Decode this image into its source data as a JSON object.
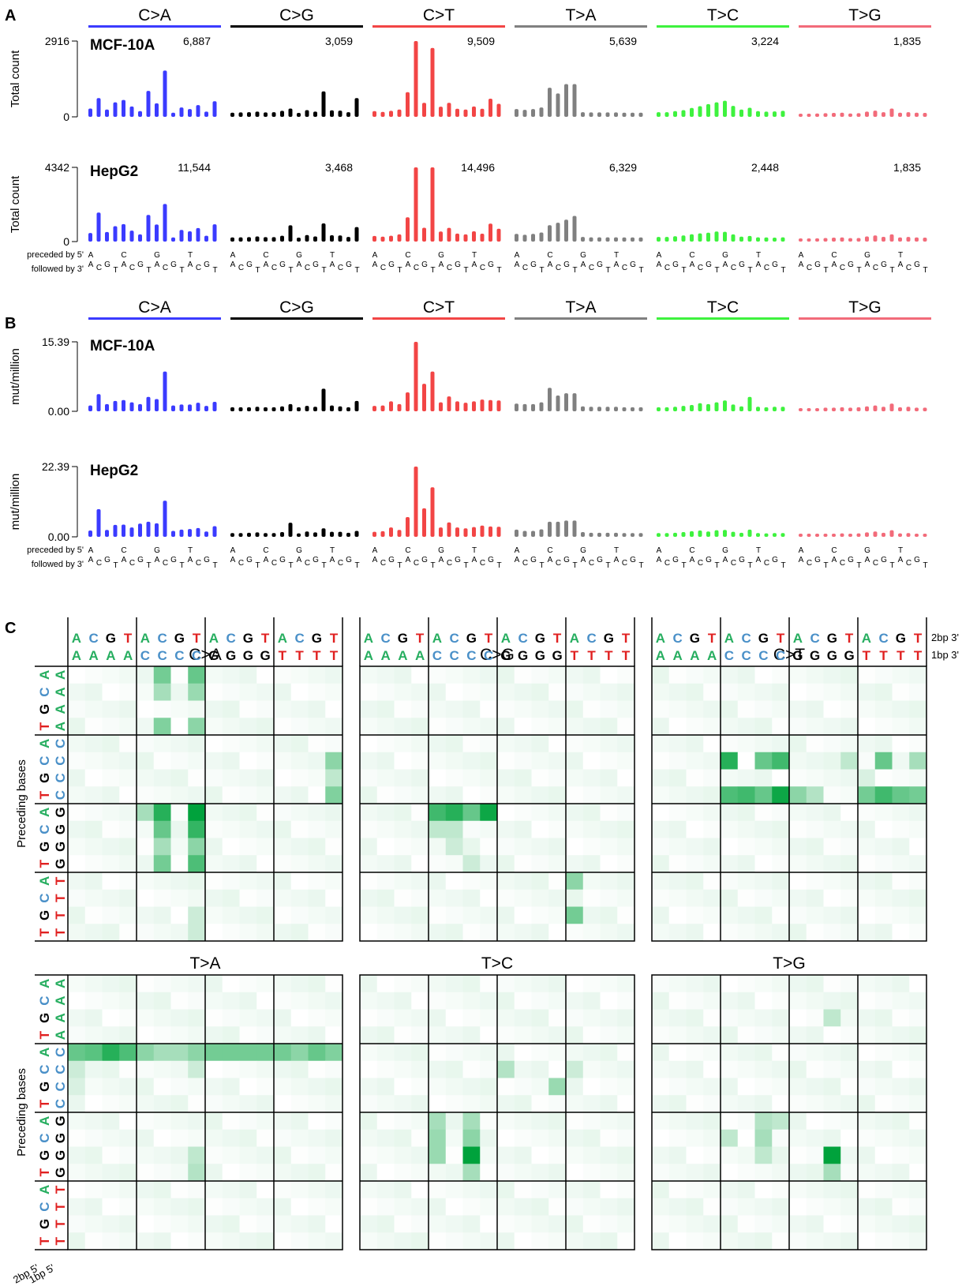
{
  "panels": [
    {
      "letter": "A",
      "kind": "total_count"
    },
    {
      "letter": "B",
      "kind": "mut_per_million"
    },
    {
      "letter": "C",
      "kind": "heatmap"
    }
  ],
  "substitutions": [
    {
      "label": "C>A",
      "color": "#3b3bff"
    },
    {
      "label": "C>G",
      "color": "#000000"
    },
    {
      "label": "C>T",
      "color": "#f24545"
    },
    {
      "label": "T>A",
      "color": "#808080"
    },
    {
      "label": "T>C",
      "color": "#3ef23e"
    },
    {
      "label": "T>G",
      "color": "#f26b7a"
    }
  ],
  "context": {
    "preceded_label": "preceded by 5'",
    "followed_label": "followed by 3'",
    "preceded_bases": [
      "A",
      "C",
      "G",
      "T"
    ],
    "followed_bases": [
      "A",
      "C",
      "G",
      "T"
    ]
  },
  "base_colors": {
    "A": "#27ae60",
    "C": "#4a90c8",
    "G": "#000000",
    "T": "#e02020"
  },
  "chart_data": [
    {
      "type": "bar",
      "panel": "A",
      "sample": "MCF-10A",
      "ylabel": "Total count",
      "ylim": [
        0,
        2916
      ],
      "yticks": [
        "2916",
        "0"
      ],
      "group_totals": [
        "6,887",
        "3,059",
        "9,509",
        "5,639",
        "3,224",
        "1,835"
      ],
      "series": [
        {
          "name": "C>A",
          "values": [
            320,
            720,
            280,
            560,
            650,
            400,
            220,
            1000,
            520,
            1780,
            160,
            360,
            300,
            450,
            200,
            600
          ]
        },
        {
          "name": "C>G",
          "values": [
            160,
            170,
            180,
            200,
            170,
            180,
            230,
            320,
            150,
            260,
            200,
            980,
            250,
            240,
            180,
            720
          ]
        },
        {
          "name": "C>T",
          "values": [
            220,
            190,
            230,
            280,
            950,
            2916,
            540,
            2650,
            390,
            540,
            310,
            280,
            400,
            310,
            700,
            500
          ]
        },
        {
          "name": "T>A",
          "values": [
            300,
            270,
            300,
            360,
            1120,
            900,
            1260,
            1260,
            180,
            170,
            170,
            170,
            170,
            160,
            160,
            160
          ]
        },
        {
          "name": "T>C",
          "values": [
            180,
            180,
            220,
            260,
            340,
            410,
            490,
            560,
            620,
            420,
            280,
            350,
            220,
            200,
            210,
            230
          ]
        },
        {
          "name": "T>G",
          "values": [
            110,
            120,
            130,
            140,
            150,
            160,
            130,
            140,
            200,
            240,
            180,
            320,
            160,
            180,
            160,
            150
          ]
        }
      ]
    },
    {
      "type": "bar",
      "panel": "A",
      "sample": "HepG2",
      "ylabel": "Total count",
      "ylim": [
        0,
        4342
      ],
      "yticks": [
        "4342",
        "0"
      ],
      "group_totals": [
        "11,544",
        "3,468",
        "14,496",
        "6,329",
        "2,448",
        "1,835"
      ],
      "series": [
        {
          "name": "C>A",
          "values": [
            500,
            1700,
            560,
            900,
            1020,
            640,
            420,
            1560,
            1000,
            2200,
            240,
            680,
            600,
            790,
            340,
            1010
          ]
        },
        {
          "name": "C>G",
          "values": [
            240,
            250,
            260,
            300,
            260,
            260,
            340,
            950,
            230,
            380,
            300,
            1060,
            370,
            360,
            270,
            850
          ]
        },
        {
          "name": "C>T",
          "values": [
            330,
            290,
            340,
            420,
            1420,
            4342,
            810,
            4342,
            590,
            800,
            470,
            420,
            600,
            460,
            1050,
            750
          ]
        },
        {
          "name": "T>A",
          "values": [
            450,
            400,
            450,
            530,
            960,
            1100,
            1280,
            1500,
            270,
            250,
            250,
            250,
            250,
            240,
            240,
            240
          ]
        },
        {
          "name": "T>C",
          "values": [
            270,
            270,
            310,
            360,
            430,
            480,
            520,
            590,
            570,
            420,
            290,
            330,
            250,
            240,
            230,
            250
          ]
        },
        {
          "name": "T>G",
          "values": [
            160,
            180,
            190,
            210,
            230,
            240,
            200,
            210,
            300,
            360,
            280,
            420,
            240,
            270,
            240,
            230
          ]
        }
      ]
    },
    {
      "type": "bar",
      "panel": "B",
      "sample": "MCF-10A",
      "ylabel": "mut/million",
      "ylim": [
        0,
        15.39
      ],
      "yticks": [
        "15.39",
        "0.00"
      ],
      "series": [
        {
          "name": "C>A",
          "values": [
            1.3,
            3.8,
            1.6,
            2.3,
            2.5,
            2.0,
            1.6,
            3.2,
            2.7,
            8.8,
            1.3,
            1.5,
            1.5,
            1.9,
            1.2,
            2.1
          ]
        },
        {
          "name": "C>G",
          "values": [
            0.9,
            0.9,
            0.9,
            1.0,
            0.9,
            0.9,
            1.1,
            1.6,
            0.9,
            1.2,
            1.0,
            5.0,
            1.3,
            1.1,
            0.9,
            2.3
          ]
        },
        {
          "name": "C>T",
          "values": [
            1.2,
            1.3,
            2.2,
            1.6,
            4.2,
            15.39,
            6.1,
            8.8,
            2.0,
            3.3,
            2.2,
            1.9,
            2.2,
            2.6,
            2.5,
            2.4
          ]
        },
        {
          "name": "T>A",
          "values": [
            1.7,
            1.6,
            1.6,
            2.0,
            5.2,
            3.5,
            4.0,
            4.0,
            1.1,
            1.0,
            1.0,
            1.0,
            1.0,
            0.9,
            0.9,
            0.9
          ]
        },
        {
          "name": "T>C",
          "values": [
            0.9,
            0.9,
            1.0,
            1.2,
            1.4,
            1.8,
            1.6,
            2.0,
            2.4,
            1.5,
            1.1,
            3.2,
            1.0,
            0.9,
            1.0,
            1.0
          ]
        },
        {
          "name": "T>G",
          "values": [
            0.6,
            0.7,
            0.7,
            0.8,
            0.8,
            0.9,
            0.8,
            0.9,
            1.1,
            1.3,
            1.0,
            1.7,
            0.9,
            1.0,
            0.8,
            0.8
          ]
        }
      ]
    },
    {
      "type": "bar",
      "panel": "B",
      "sample": "HepG2",
      "ylabel": "mut/million",
      "ylim": [
        0,
        22.39
      ],
      "yticks": [
        "22.39",
        "0.00"
      ],
      "series": [
        {
          "name": "C>A",
          "values": [
            2.0,
            8.8,
            2.2,
            3.8,
            3.9,
            3.0,
            4.2,
            4.8,
            4.3,
            11.5,
            1.9,
            2.3,
            2.5,
            2.8,
            1.7,
            3.4
          ]
        },
        {
          "name": "C>G",
          "values": [
            1.2,
            1.2,
            1.3,
            1.4,
            1.2,
            1.2,
            1.5,
            4.5,
            1.1,
            1.7,
            1.4,
            2.7,
            1.6,
            1.6,
            1.3,
            1.9
          ]
        },
        {
          "name": "C>T",
          "values": [
            1.6,
            1.8,
            3.0,
            2.2,
            6.3,
            22.39,
            9.1,
            15.8,
            3.0,
            4.6,
            3.0,
            2.7,
            3.1,
            3.6,
            3.3,
            3.2
          ]
        },
        {
          "name": "T>A",
          "values": [
            2.3,
            1.9,
            1.9,
            2.4,
            4.8,
            4.8,
            5.2,
            5.2,
            1.5,
            1.3,
            1.3,
            1.3,
            1.3,
            1.2,
            1.2,
            1.2
          ]
        },
        {
          "name": "T>C",
          "values": [
            1.2,
            1.2,
            1.3,
            1.5,
            1.8,
            2.0,
            1.7,
            2.1,
            2.2,
            1.6,
            1.3,
            2.3,
            1.2,
            1.1,
            1.2,
            1.2
          ]
        },
        {
          "name": "T>G",
          "values": [
            0.8,
            0.9,
            0.9,
            1.0,
            1.0,
            1.1,
            1.0,
            1.1,
            1.4,
            1.7,
            1.3,
            2.1,
            1.1,
            1.2,
            1.0,
            1.0
          ]
        }
      ]
    },
    {
      "type": "heatmap",
      "panel": "C",
      "ylabel": "Preceding bases",
      "row_labels_2bp_5": [
        "A",
        "C",
        "G",
        "T"
      ],
      "row_blocks_1bp_5": [
        "A",
        "C",
        "G",
        "T"
      ],
      "col_labels_2bp_3": [
        "A",
        "C",
        "G",
        "T"
      ],
      "col_blocks_1bp_3": [
        "A",
        "C",
        "G",
        "T"
      ],
      "col_note_2bp": "2bp 3'",
      "col_note_1bp": "1bp 3'",
      "row_note_2bp": "2bp 5'",
      "row_note_1bp": "1bp 5'",
      "color_scale": [
        "#ffffff",
        "#00a23c"
      ],
      "grids": [
        {
          "name": "C>A",
          "hot": [
            [
              0,
              5,
              0.55
            ],
            [
              0,
              7,
              0.6
            ],
            [
              1,
              5,
              0.35
            ],
            [
              1,
              7,
              0.4
            ],
            [
              3,
              5,
              0.5
            ],
            [
              3,
              7,
              0.45
            ],
            [
              5,
              15,
              0.45
            ],
            [
              6,
              15,
              0.25
            ],
            [
              7,
              15,
              0.5
            ],
            [
              8,
              5,
              0.85
            ],
            [
              8,
              7,
              1.0
            ],
            [
              8,
              4,
              0.35
            ],
            [
              9,
              5,
              0.6
            ],
            [
              9,
              7,
              0.8
            ],
            [
              10,
              5,
              0.35
            ],
            [
              10,
              7,
              0.45
            ],
            [
              11,
              5,
              0.55
            ],
            [
              11,
              7,
              0.7
            ],
            [
              14,
              7,
              0.2
            ],
            [
              15,
              7,
              0.2
            ]
          ]
        },
        {
          "name": "C>G",
          "hot": [
            [
              8,
              4,
              0.75
            ],
            [
              8,
              5,
              0.85
            ],
            [
              8,
              6,
              0.6
            ],
            [
              8,
              7,
              0.95
            ],
            [
              9,
              4,
              0.25
            ],
            [
              9,
              5,
              0.25
            ],
            [
              10,
              5,
              0.2
            ],
            [
              11,
              6,
              0.2
            ],
            [
              12,
              12,
              0.45
            ],
            [
              14,
              12,
              0.55
            ]
          ]
        },
        {
          "name": "C>T",
          "hot": [
            [
              5,
              4,
              0.85
            ],
            [
              5,
              6,
              0.6
            ],
            [
              5,
              7,
              0.75
            ],
            [
              5,
              11,
              0.25
            ],
            [
              5,
              13,
              0.6
            ],
            [
              5,
              15,
              0.35
            ],
            [
              7,
              4,
              0.7
            ],
            [
              7,
              5,
              0.75
            ],
            [
              7,
              6,
              0.6
            ],
            [
              7,
              7,
              0.95
            ],
            [
              7,
              8,
              0.45
            ],
            [
              7,
              9,
              0.3
            ],
            [
              7,
              12,
              0.55
            ],
            [
              7,
              13,
              0.75
            ],
            [
              7,
              14,
              0.6
            ],
            [
              7,
              15,
              0.55
            ],
            [
              6,
              12,
              0.15
            ]
          ]
        },
        {
          "name": "T>A",
          "hot": [
            [
              4,
              0,
              0.6
            ],
            [
              4,
              1,
              0.65
            ],
            [
              4,
              2,
              0.85
            ],
            [
              4,
              3,
              0.7
            ],
            [
              4,
              4,
              0.45
            ],
            [
              4,
              5,
              0.35
            ],
            [
              4,
              6,
              0.35
            ],
            [
              4,
              7,
              0.45
            ],
            [
              4,
              8,
              0.55
            ],
            [
              4,
              9,
              0.55
            ],
            [
              4,
              10,
              0.55
            ],
            [
              4,
              11,
              0.55
            ],
            [
              4,
              12,
              0.55
            ],
            [
              4,
              13,
              0.45
            ],
            [
              4,
              14,
              0.6
            ],
            [
              4,
              15,
              0.5
            ],
            [
              5,
              0,
              0.2
            ],
            [
              5,
              7,
              0.2
            ],
            [
              6,
              0,
              0.15
            ],
            [
              10,
              7,
              0.25
            ],
            [
              11,
              7,
              0.3
            ]
          ]
        },
        {
          "name": "T>C",
          "hot": [
            [
              8,
              4,
              0.35
            ],
            [
              9,
              4,
              0.4
            ],
            [
              10,
              4,
              0.4
            ],
            [
              8,
              6,
              0.35
            ],
            [
              9,
              6,
              0.45
            ],
            [
              10,
              6,
              1.0
            ],
            [
              11,
              6,
              0.35
            ],
            [
              5,
              8,
              0.3
            ],
            [
              6,
              11,
              0.4
            ],
            [
              5,
              12,
              0.2
            ]
          ]
        },
        {
          "name": "T>G",
          "hot": [
            [
              10,
              10,
              1.0
            ],
            [
              8,
              6,
              0.3
            ],
            [
              9,
              6,
              0.35
            ],
            [
              10,
              6,
              0.25
            ],
            [
              8,
              7,
              0.25
            ],
            [
              9,
              4,
              0.25
            ],
            [
              9,
              5,
              0.0
            ],
            [
              11,
              10,
              0.35
            ],
            [
              2,
              10,
              0.25
            ]
          ]
        }
      ]
    }
  ]
}
